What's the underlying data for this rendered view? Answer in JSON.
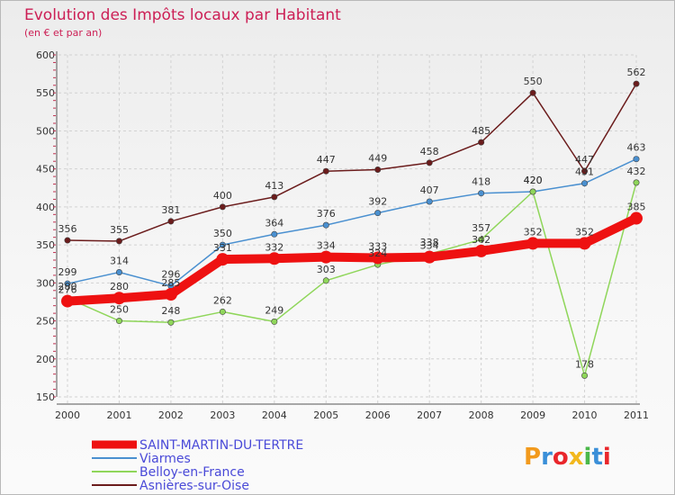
{
  "chart_data": {
    "type": "line",
    "title": "Evolution des Impôts locaux par Habitant",
    "subtitle": "(en € et par an)",
    "categories": [
      "2000",
      "2001",
      "2002",
      "2003",
      "2004",
      "2005",
      "2006",
      "2007",
      "2008",
      "2009",
      "2010",
      "2011"
    ],
    "yticks": [
      "600",
      "550",
      "500",
      "450",
      "400",
      "350",
      "300",
      "250",
      "200",
      "150"
    ],
    "ylim": [
      150,
      600
    ],
    "grid": true,
    "legend_position": "bottom-left",
    "series": [
      {
        "name": "Asnières-sur-Oise",
        "color": "#6b1c1c",
        "values": [
          356,
          355,
          381,
          400,
          413,
          447,
          449,
          458,
          485,
          550,
          447,
          562
        ],
        "labels": [
          "356",
          "355",
          "381",
          "400",
          "413",
          "447",
          "449",
          "458",
          "485",
          "550",
          "447",
          "562"
        ]
      },
      {
        "name": "Viarmes",
        "color": "#4a90d0",
        "values": [
          299,
          314,
          296,
          350,
          364,
          376,
          392,
          407,
          418,
          420,
          431,
          463
        ],
        "labels": [
          "299",
          "314",
          "296",
          "350",
          "364",
          "376",
          "392",
          "407",
          "418",
          "420",
          "431",
          "463"
        ]
      },
      {
        "name": "Belloy-en-France",
        "color": "#8fd65a",
        "values": [
          280,
          250,
          248,
          262,
          249,
          303,
          324,
          338,
          357,
          420,
          178,
          432
        ],
        "labels": [
          "280",
          "250",
          "248",
          "262",
          "249",
          "303",
          "324",
          "338",
          "357",
          "420",
          "178",
          "432"
        ]
      },
      {
        "name": "SAINT-MARTIN-DU-TERTRE",
        "color": "#ee1111",
        "values": [
          276,
          280,
          285,
          331,
          332,
          334,
          333,
          334,
          342,
          352,
          352,
          385
        ],
        "labels": [
          "276",
          "280",
          "285",
          "331",
          "332",
          "334",
          "333",
          "334",
          "342",
          "352",
          "352",
          "385"
        ]
      }
    ],
    "legend": [
      "SAINT-MARTIN-DU-TERTRE",
      "Viarmes",
      "Belloy-en-France",
      "Asnières-sur-Oise"
    ]
  },
  "logo": {
    "text": "Proxiti"
  }
}
